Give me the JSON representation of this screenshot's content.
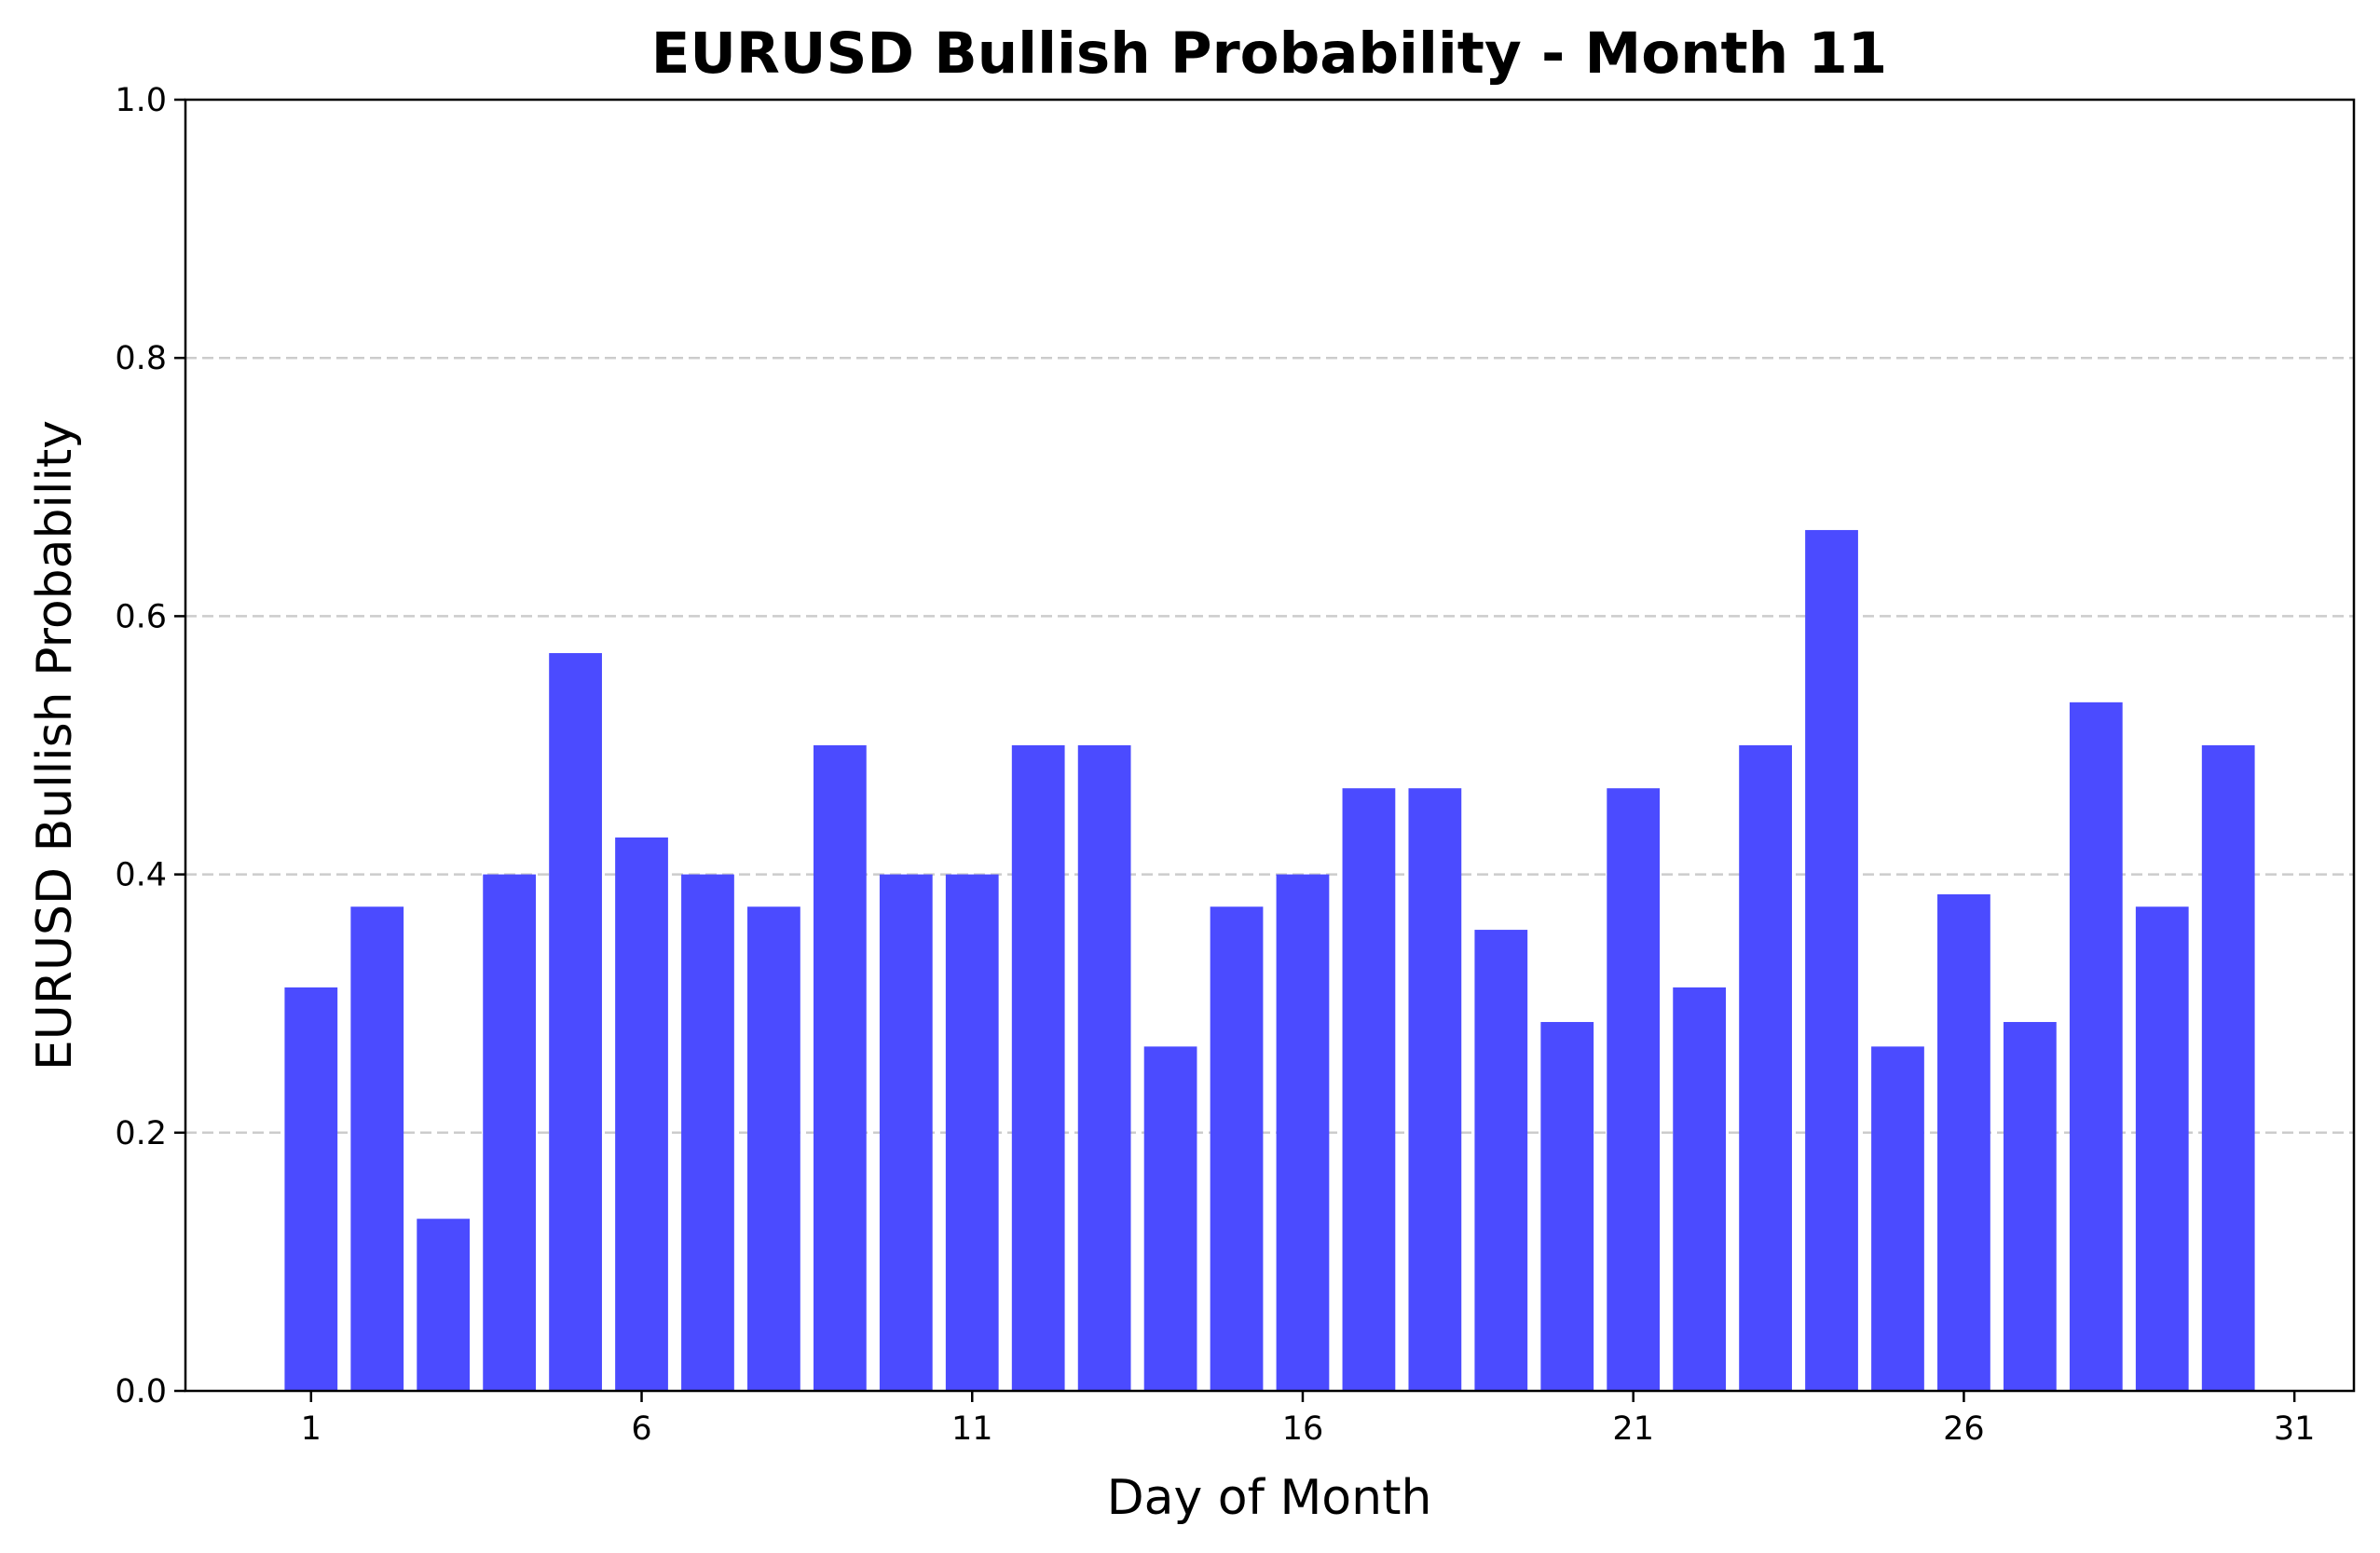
{
  "chart_data": {
    "type": "bar",
    "title": "EURUSD Bullish Probability - Month 11",
    "xlabel": "Day of Month",
    "ylabel": "EURUSD Bullish Probability",
    "x": [
      1,
      2,
      3,
      4,
      5,
      6,
      7,
      8,
      9,
      10,
      11,
      12,
      13,
      14,
      15,
      16,
      17,
      18,
      19,
      20,
      21,
      22,
      23,
      24,
      25,
      26,
      27,
      28,
      29,
      30
    ],
    "values": [
      0.3125,
      0.375,
      0.1333,
      0.4,
      0.5714,
      0.4286,
      0.4,
      0.375,
      0.5,
      0.4,
      0.4,
      0.5,
      0.5,
      0.2667,
      0.375,
      0.4,
      0.4667,
      0.4667,
      0.3571,
      0.2857,
      0.4667,
      0.3125,
      0.5,
      0.6667,
      0.2667,
      0.3846,
      0.2857,
      0.5333,
      0.375,
      0.5
    ],
    "xlim": [
      -0.9,
      31.9
    ],
    "ylim": [
      0,
      1.0
    ],
    "xticks": [
      1,
      6,
      11,
      16,
      21,
      26,
      31
    ],
    "yticks": [
      0.0,
      0.2,
      0.4,
      0.6,
      0.8,
      1.0
    ],
    "ytick_labels": [
      "0.0",
      "0.2",
      "0.4",
      "0.6",
      "0.8",
      "1.0"
    ],
    "xtick_labels": [
      "1",
      "6",
      "11",
      "16",
      "21",
      "26",
      "31"
    ],
    "bar_color": "#4b4bff",
    "grid": "y-dashed",
    "legend": "none"
  }
}
